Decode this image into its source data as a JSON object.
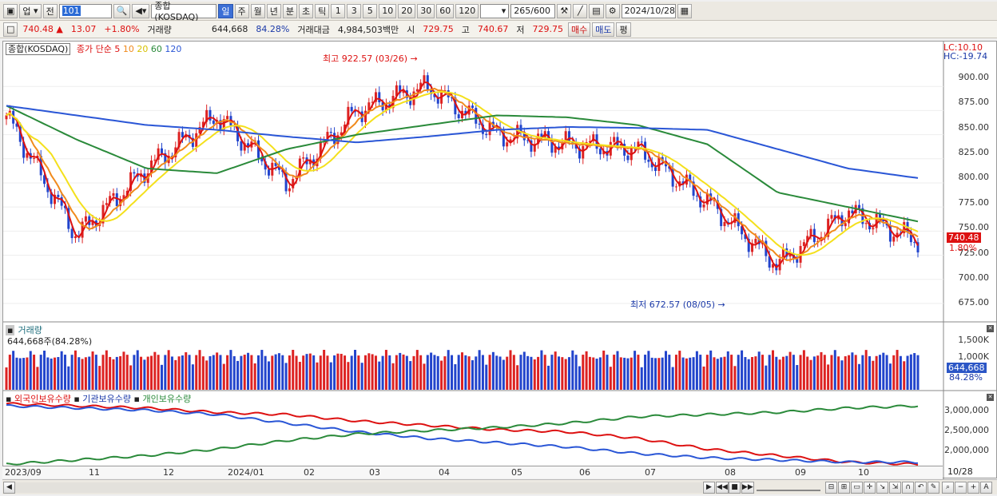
{
  "toolbar": {
    "market_select": "업",
    "prev_label": "전",
    "code_value": "101",
    "index_name": "종합(KOSDAQ)",
    "period_tabs": [
      "일",
      "주",
      "월",
      "년",
      "분",
      "초",
      "틱"
    ],
    "active_period": "일",
    "interval_buttons": [
      "1",
      "3",
      "5",
      "10",
      "20",
      "30",
      "60",
      "120"
    ],
    "count_value": "265",
    "count_total": "/600",
    "date_value": "2024/10/28"
  },
  "quote": {
    "price": "740.48",
    "change_arrow": "▲",
    "change": "13.07",
    "change_pct": "+1.80%",
    "volume_label": "거래량",
    "volume": "644,668",
    "volume_pct": "84.28%",
    "amount_label": "거래대금",
    "amount": "4,984,503백만",
    "open_label": "시",
    "open": "729.75",
    "high_label": "고",
    "high": "740.67",
    "low_label": "저",
    "low": "729.75",
    "buy_label": "매수",
    "sell_label": "매도",
    "eval_label": "평"
  },
  "price_pane": {
    "legend_title": "종합(KOSDAQ)",
    "legend_ma_prefix": "종가 단순",
    "ma_periods": [
      "5",
      "10",
      "20",
      "60",
      "120"
    ],
    "lc_label": "LC:10.10",
    "hc_label": "HC:-19.74",
    "high_annotation": "최고 922.57 (03/26)",
    "low_annotation": "최저 672.57 (08/05)",
    "y_ticks": [
      "900.00",
      "875.00",
      "850.00",
      "825.00",
      "800.00",
      "775.00",
      "750.00",
      "725.00",
      "700.00",
      "675.00"
    ],
    "current_tag": "740.48",
    "current_pct": "1.80%"
  },
  "volume_pane": {
    "title": "거래량",
    "subtitle": "644,668주(84.28%)",
    "y_ticks": [
      "1,500K",
      "1,000K"
    ],
    "current_tag": "644,668",
    "current_pct": "84.28%"
  },
  "holdings_pane": {
    "legend": [
      "외국인보유수량",
      "기관보유수량",
      "개인보유수량"
    ],
    "y_ticks": [
      "3,000,000",
      "2,500,000",
      "2,000,000"
    ]
  },
  "time_axis": {
    "labels": [
      "2023/09",
      "11",
      "12",
      "2024/01",
      "02",
      "03",
      "04",
      "05",
      "06",
      "07",
      "08",
      "09",
      "10"
    ],
    "end_label": "10/28"
  },
  "colors": {
    "up": "#dd2222",
    "down": "#2244cc",
    "ma5": "#dd1111",
    "ma10": "#f08a1c",
    "ma20": "#f4e01c",
    "ma60": "#2a8a3a",
    "ma120": "#2a56d6"
  },
  "chart_data": [
    {
      "type": "line",
      "title": "종합(KOSDAQ)",
      "x": [
        "2023/09",
        "11",
        "12",
        "2024/01",
        "02",
        "03",
        "04",
        "05",
        "06",
        "07",
        "08",
        "09",
        "10",
        "10/28"
      ],
      "series": [
        {
          "name": "종가 단순 5",
          "values": [
            870,
            745,
            815,
            870,
            800,
            875,
            900,
            850,
            840,
            835,
            780,
            715,
            770,
            740
          ]
        },
        {
          "name": "종가 단순 60",
          "values": [
            880,
            845,
            815,
            810,
            835,
            850,
            860,
            870,
            868,
            860,
            840,
            790,
            775,
            760
          ]
        },
        {
          "name": "종가 단순 120",
          "values": [
            880,
            870,
            860,
            855,
            848,
            842,
            848,
            855,
            858,
            857,
            855,
            835,
            815,
            805
          ]
        }
      ],
      "ylim": [
        665,
        930
      ],
      "annotations": [
        "최고 922.57 (03/26)",
        "최저 672.57 (08/05)"
      ]
    },
    {
      "type": "line",
      "title": "",
      "series": [
        {
          "name": "외국인보유수량",
          "values": [
            3200000,
            3150000,
            3100000,
            3000000,
            2950000,
            2800000,
            2700000,
            2600000,
            2550000,
            2400000,
            2150000,
            2000000,
            1850000,
            1800000
          ]
        },
        {
          "name": "기관보유수량",
          "values": [
            3150000,
            3100000,
            3050000,
            2950000,
            2750000,
            2550000,
            2400000,
            2300000,
            2200000,
            2050000,
            1950000,
            1900000,
            1850000,
            1850000
          ]
        },
        {
          "name": "개인보유수량",
          "values": [
            1800000,
            1900000,
            2000000,
            2150000,
            2350000,
            2500000,
            2580000,
            2650000,
            2750000,
            2900000,
            2950000,
            3000000,
            3100000,
            3150000
          ]
        }
      ],
      "ylim": [
        1750000,
        3300000
      ]
    }
  ]
}
